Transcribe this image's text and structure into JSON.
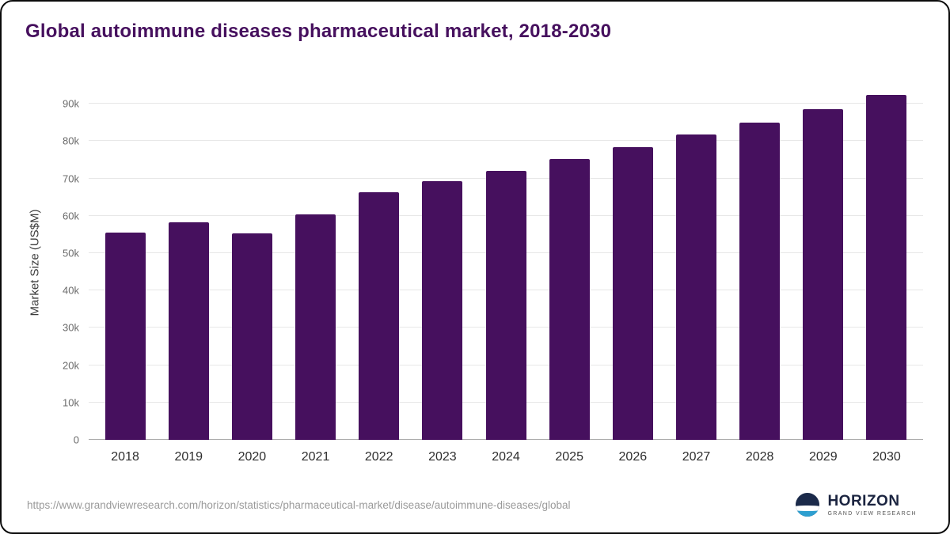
{
  "title": "Global autoimmune diseases pharmaceutical market, 2018-2030",
  "colors": {
    "bar": "#46105e",
    "title": "#46105e",
    "gridline": "#e7e7e7",
    "logo_navy": "#1b2a4a",
    "logo_blue": "#2e9fd0"
  },
  "chart_data": {
    "type": "bar",
    "title": "Global autoimmune diseases pharmaceutical market, 2018-2030",
    "categories": [
      "2018",
      "2019",
      "2020",
      "2021",
      "2022",
      "2023",
      "2024",
      "2025",
      "2026",
      "2027",
      "2028",
      "2029",
      "2030"
    ],
    "values": [
      55600,
      58200,
      55300,
      60400,
      66300,
      69200,
      72100,
      75200,
      78400,
      81700,
      85000,
      88500,
      92300
    ],
    "xlabel": "",
    "ylabel": "Market Size (US$M)",
    "ylim": [
      0,
      90000
    ],
    "ytick_labels": [
      "0",
      "10k",
      "20k",
      "30k",
      "40k",
      "50k",
      "60k",
      "70k",
      "80k",
      "90k"
    ],
    "ytick_values": [
      0,
      10000,
      20000,
      30000,
      40000,
      50000,
      60000,
      70000,
      80000,
      90000
    ],
    "grid": "horizontal",
    "legend": "none",
    "bar_color": "#46105e"
  },
  "footer": {
    "source_url": "https://www.grandviewresearch.com/horizon/statistics/pharmaceutical-market/disease/autoimmune-diseases/global",
    "brand": {
      "name": "HORIZON",
      "subtitle": "GRAND VIEW RESEARCH"
    }
  }
}
